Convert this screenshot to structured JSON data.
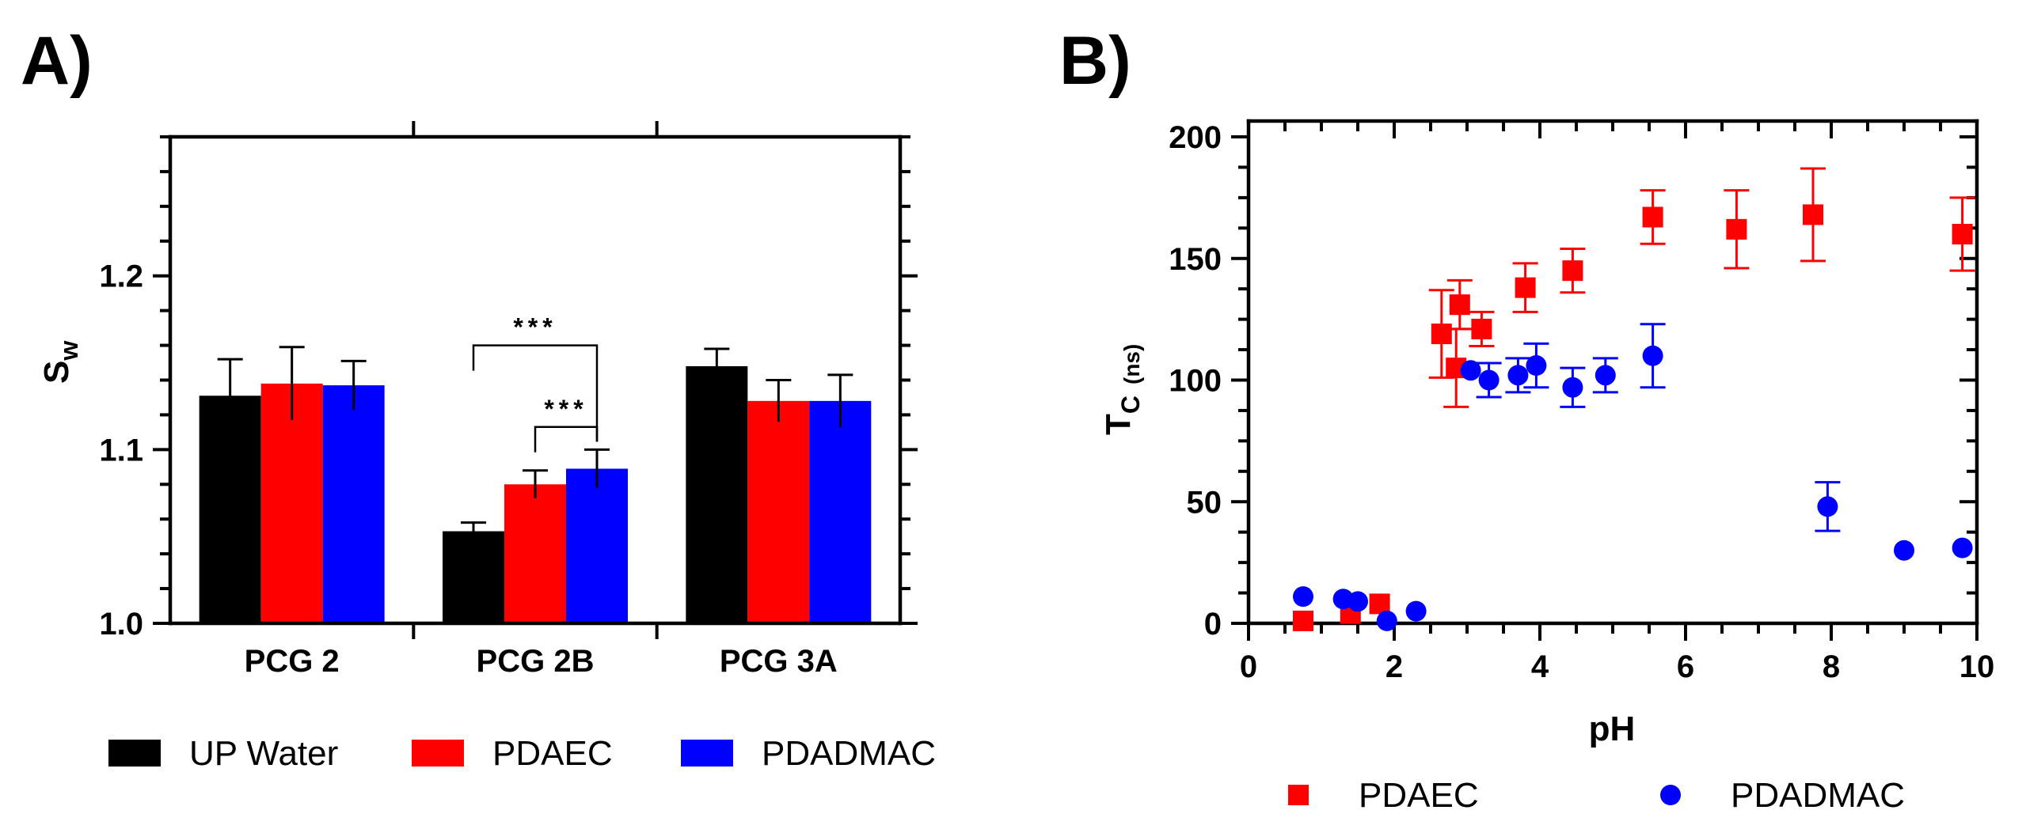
{
  "chart_data": [
    {
      "panel": "A)",
      "type": "bar",
      "categories": [
        "PCG 2",
        "PCG 2B",
        "PCG 3A"
      ],
      "series": [
        {
          "name": "UP Water",
          "color": "#000000",
          "values": [
            1.131,
            1.053,
            1.148
          ],
          "errors": [
            0.021,
            0.005,
            0.01
          ]
        },
        {
          "name": "PDAEC",
          "color": "#ff0000",
          "values": [
            1.138,
            1.08,
            1.128
          ],
          "errors": [
            0.021,
            0.008,
            0.012
          ]
        },
        {
          "name": "PDADMAC",
          "color": "#0000ff",
          "values": [
            1.137,
            1.089,
            1.128
          ],
          "errors": [
            0.014,
            0.011,
            0.015
          ]
        }
      ],
      "ylabel_main": "S",
      "ylabel_sub": "w",
      "xlabel": "",
      "ylim": [
        1.0,
        1.28
      ],
      "yticks_major": [
        1.0,
        1.1,
        1.2
      ],
      "ytick_labels": [
        "1.0",
        "1.1",
        "1.2"
      ],
      "significance": [
        {
          "label": "***",
          "from": [
            1,
            0
          ],
          "to": [
            1,
            2
          ]
        },
        {
          "label": "***",
          "from": [
            1,
            1
          ],
          "to": [
            1,
            2
          ]
        }
      ],
      "legend_position": "bottom"
    },
    {
      "panel": "B)",
      "type": "scatter",
      "xlabel": "pH",
      "ylabel_main": "T",
      "ylabel_sub": "C",
      "ylabel_unit": "(ns)",
      "xlim": [
        0,
        10
      ],
      "ylim": [
        0,
        200
      ],
      "xticks": [
        0,
        2,
        4,
        6,
        8,
        10
      ],
      "xtick_labels": [
        "0",
        "2",
        "4",
        "6",
        "8",
        "10"
      ],
      "yticks": [
        0,
        50,
        100,
        150,
        200
      ],
      "ytick_labels": [
        "0",
        "50",
        "100",
        "150",
        "200"
      ],
      "series": [
        {
          "name": "PDAEC",
          "marker": "square",
          "color": "#ff0000",
          "points": [
            {
              "x": 0.75,
              "y": 1,
              "err": 0
            },
            {
              "x": 1.4,
              "y": 4,
              "err": 0
            },
            {
              "x": 1.8,
              "y": 8,
              "err": 0
            },
            {
              "x": 2.65,
              "y": 119,
              "err": 18
            },
            {
              "x": 2.85,
              "y": 105,
              "err": 16
            },
            {
              "x": 2.9,
              "y": 131,
              "err": 10
            },
            {
              "x": 3.2,
              "y": 121,
              "err": 7
            },
            {
              "x": 3.8,
              "y": 138,
              "err": 10
            },
            {
              "x": 4.45,
              "y": 145,
              "err": 9
            },
            {
              "x": 5.55,
              "y": 167,
              "err": 11
            },
            {
              "x": 6.7,
              "y": 162,
              "err": 16
            },
            {
              "x": 7.75,
              "y": 168,
              "err": 19
            },
            {
              "x": 9.8,
              "y": 160,
              "err": 15
            }
          ]
        },
        {
          "name": "PDADMAC",
          "marker": "circle",
          "color": "#0000ff",
          "points": [
            {
              "x": 0.75,
              "y": 11,
              "err": 0
            },
            {
              "x": 1.3,
              "y": 10,
              "err": 0
            },
            {
              "x": 1.5,
              "y": 9,
              "err": 0
            },
            {
              "x": 1.9,
              "y": 1,
              "err": 0
            },
            {
              "x": 2.3,
              "y": 5,
              "err": 0
            },
            {
              "x": 3.05,
              "y": 104,
              "err": 0
            },
            {
              "x": 3.3,
              "y": 100,
              "err": 7
            },
            {
              "x": 3.7,
              "y": 102,
              "err": 7
            },
            {
              "x": 3.95,
              "y": 106,
              "err": 9
            },
            {
              "x": 4.45,
              "y": 97,
              "err": 8
            },
            {
              "x": 4.9,
              "y": 102,
              "err": 7
            },
            {
              "x": 5.55,
              "y": 110,
              "err": 13
            },
            {
              "x": 7.95,
              "y": 48,
              "err": 10
            },
            {
              "x": 9.0,
              "y": 30,
              "err": 0
            },
            {
              "x": 9.8,
              "y": 31,
              "err": 0
            }
          ]
        }
      ],
      "legend_position": "bottom"
    }
  ]
}
